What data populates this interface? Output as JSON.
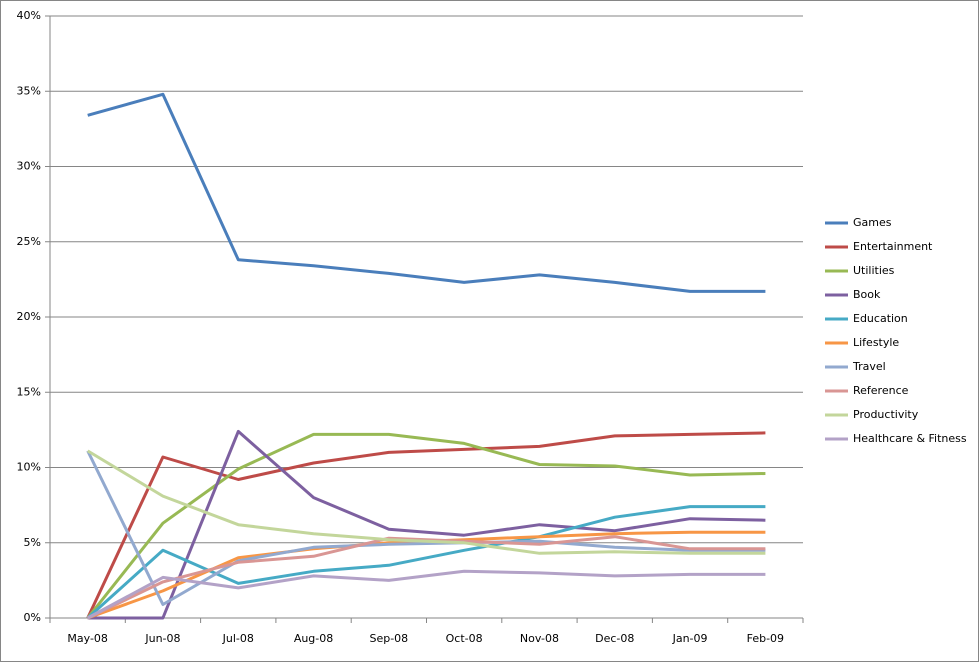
{
  "chart_data": {
    "type": "line",
    "categories": [
      "May-08",
      "Jun-08",
      "Jul-08",
      "Aug-08",
      "Sep-08",
      "Oct-08",
      "Nov-08",
      "Dec-08",
      "Jan-09",
      "Feb-09"
    ],
    "series": [
      {
        "name": "Games",
        "color": "#4a7ebb",
        "values": [
          33.4,
          34.8,
          23.8,
          23.4,
          22.9,
          22.3,
          22.8,
          22.3,
          21.7,
          21.7
        ]
      },
      {
        "name": "Entertainment",
        "color": "#be4b48",
        "values": [
          0,
          10.7,
          9.2,
          10.3,
          11.0,
          11.2,
          11.4,
          12.1,
          12.2,
          12.3
        ]
      },
      {
        "name": "Utilities",
        "color": "#98b954",
        "values": [
          0,
          6.3,
          9.9,
          12.2,
          12.2,
          11.6,
          10.2,
          10.1,
          9.5,
          9.6
        ]
      },
      {
        "name": "Book",
        "color": "#7d60a0",
        "values": [
          0,
          0,
          12.4,
          8.0,
          5.9,
          5.5,
          6.2,
          5.8,
          6.6,
          6.5
        ]
      },
      {
        "name": "Education",
        "color": "#46aac5",
        "values": [
          0,
          4.5,
          2.3,
          3.1,
          3.5,
          4.5,
          5.4,
          6.7,
          7.4,
          7.4
        ]
      },
      {
        "name": "Lifestyle",
        "color": "#f79646",
        "values": [
          0,
          1.8,
          4.0,
          4.6,
          5.0,
          5.2,
          5.4,
          5.6,
          5.7,
          5.7
        ]
      },
      {
        "name": "Travel",
        "color": "#92a9cf",
        "values": [
          11.1,
          0.9,
          3.8,
          4.7,
          4.9,
          5.0,
          5.1,
          4.7,
          4.5,
          4.5
        ]
      },
      {
        "name": "Reference",
        "color": "#d99694",
        "values": [
          0,
          2.4,
          3.7,
          4.1,
          5.3,
          5.1,
          4.9,
          5.4,
          4.6,
          4.6
        ]
      },
      {
        "name": "Productivity",
        "color": "#c3d69b",
        "values": [
          11.1,
          8.1,
          6.2,
          5.6,
          5.2,
          5.0,
          4.3,
          4.4,
          4.3,
          4.3
        ]
      },
      {
        "name": "Healthcare & Fitness",
        "color": "#b3a2c7",
        "values": [
          0,
          2.7,
          2.0,
          2.8,
          2.5,
          3.1,
          3.0,
          2.8,
          2.9,
          2.9
        ]
      }
    ],
    "ylim": [
      0,
      40
    ],
    "yticks": [
      {
        "value": 0,
        "label": "0%"
      },
      {
        "value": 5,
        "label": "5%"
      },
      {
        "value": 10,
        "label": "10%"
      },
      {
        "value": 15,
        "label": "15%"
      },
      {
        "value": 20,
        "label": "20%"
      },
      {
        "value": 25,
        "label": "25%"
      },
      {
        "value": 30,
        "label": "30%"
      },
      {
        "value": 35,
        "label": "35%"
      },
      {
        "value": 40,
        "label": "40%"
      }
    ],
    "grid": true,
    "legend": "right"
  }
}
